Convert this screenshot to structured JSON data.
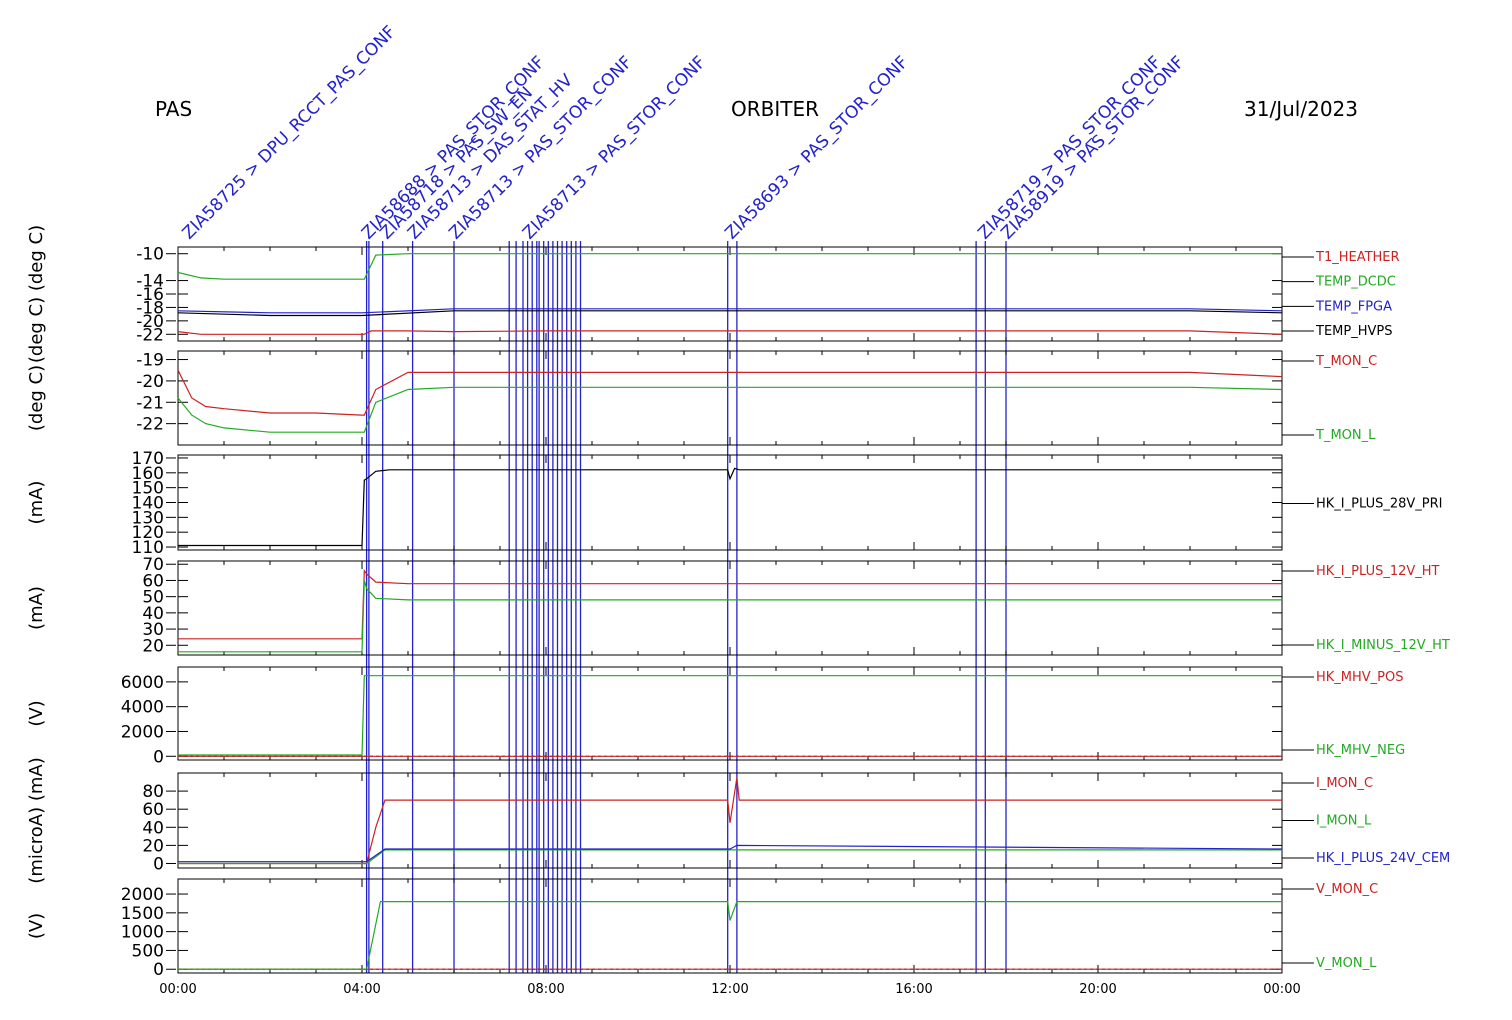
{
  "header": {
    "instrument": "PAS",
    "mission": "ORBITER",
    "date": "31/Jul/2023"
  },
  "x_axis": {
    "range_hours": [
      0,
      24
    ],
    "ticks": [
      {
        "h": 0,
        "label": "00:00"
      },
      {
        "h": 4,
        "label": "04:00"
      },
      {
        "h": 8,
        "label": "08:00"
      },
      {
        "h": 12,
        "label": "12:00"
      },
      {
        "h": 16,
        "label": "16:00"
      },
      {
        "h": 20,
        "label": "20:00"
      },
      {
        "h": 24,
        "label": "00:00"
      }
    ]
  },
  "event_markers": {
    "color": "#2222cc",
    "times_h": [
      4.1,
      4.15,
      4.45,
      5.1,
      6.0,
      7.2,
      7.35,
      7.5,
      7.6,
      7.7,
      7.8,
      7.85,
      7.95,
      8.05,
      8.15,
      8.25,
      8.35,
      8.45,
      8.55,
      8.65,
      8.75,
      11.95,
      12.15,
      17.35,
      17.55,
      18.0
    ],
    "labels": [
      {
        "h": 0.2,
        "text": "ZIA58725 > DPU_RCCT_PAS_CONF"
      },
      {
        "h": 4.1,
        "text": "ZIA58688 > PAS_STOR_CONF"
      },
      {
        "h": 4.5,
        "text": "ZIA58718 > PAS_SW_EN"
      },
      {
        "h": 5.1,
        "text": "ZIA58713 > DAS_STAT_HV"
      },
      {
        "h": 6.0,
        "text": "ZIA58713 > PAS_STOR_CONF"
      },
      {
        "h": 7.6,
        "text": "ZIA58713 > PAS_STOR_CONF"
      },
      {
        "h": 12.0,
        "text": "ZIA58693 > PAS_STOR_CONF"
      },
      {
        "h": 17.5,
        "text": "ZIA58719 > PAS_STOR_CONF"
      },
      {
        "h": 18.0,
        "text": "ZIA58919 > PAS_STOR_CONF"
      }
    ]
  },
  "chart_data": [
    {
      "type": "line",
      "ylabel": "(deg C) (deg C)",
      "ylim": [
        -23,
        -9
      ],
      "ticks": [
        -10,
        -14,
        -16,
        -18,
        -20,
        -22
      ],
      "tick_labels": [
        "-10",
        "-14",
        "-16",
        "-18",
        "-20",
        "-22"
      ],
      "series": [
        {
          "name": "T1_HEATHER",
          "color": "#cc2222",
          "x": [
            0,
            0.5,
            1,
            2,
            3,
            4,
            4.05,
            4.2,
            5,
            6,
            8,
            10,
            12,
            14,
            16,
            18,
            20,
            22,
            24
          ],
          "y": [
            -21.6,
            -22,
            -22,
            -22,
            -22,
            -22,
            -22,
            -21.5,
            -21.5,
            -21.6,
            -21.5,
            -21.5,
            -21.5,
            -21.5,
            -21.5,
            -21.5,
            -21.5,
            -21.5,
            -22
          ]
        },
        {
          "name": "TEMP_DCDC",
          "color": "#22aa22",
          "x": [
            0,
            0.5,
            1,
            2,
            3,
            4,
            4.05,
            4.3,
            5,
            6,
            8,
            10,
            12,
            14,
            16,
            18,
            20,
            22,
            24
          ],
          "y": [
            -12.8,
            -13.6,
            -13.8,
            -13.8,
            -13.8,
            -13.8,
            -13.8,
            -10.2,
            -10.0,
            -10.0,
            -10.0,
            -10.0,
            -10.0,
            -10.0,
            -10.0,
            -10.0,
            -10.0,
            -10.0,
            -10.0
          ]
        },
        {
          "name": "TEMP_FPGA",
          "color": "#2222cc",
          "x": [
            0,
            2,
            4,
            6,
            8,
            10,
            12,
            14,
            16,
            18,
            20,
            22,
            24
          ],
          "y": [
            -18.5,
            -18.8,
            -18.8,
            -18.2,
            -18.2,
            -18.2,
            -18.2,
            -18.2,
            -18.2,
            -18.2,
            -18.2,
            -18.2,
            -18.5
          ]
        },
        {
          "name": "TEMP_HVPS",
          "color": "#000000",
          "x": [
            0,
            2,
            4,
            6,
            8,
            10,
            12,
            14,
            16,
            18,
            20,
            22,
            24
          ],
          "y": [
            -18.8,
            -19.2,
            -19.2,
            -18.5,
            -18.5,
            -18.5,
            -18.5,
            -18.5,
            -18.5,
            -18.5,
            -18.5,
            -18.5,
            -18.8
          ]
        }
      ]
    },
    {
      "type": "line",
      "ylabel": "(deg C)",
      "ylim": [
        -23,
        -18.6
      ],
      "ticks": [
        -19,
        -20,
        -21,
        -22
      ],
      "tick_labels": [
        "-19",
        "-20",
        "-21",
        "-22"
      ],
      "series": [
        {
          "name": "T_MON_C",
          "color": "#cc2222",
          "x": [
            0,
            0.3,
            0.6,
            1,
            2,
            3,
            4,
            4.05,
            4.3,
            5,
            6,
            8,
            10,
            12,
            14,
            16,
            18,
            20,
            22,
            24
          ],
          "y": [
            -19.5,
            -20.8,
            -21.2,
            -21.3,
            -21.5,
            -21.5,
            -21.6,
            -21.6,
            -20.4,
            -19.6,
            -19.6,
            -19.6,
            -19.6,
            -19.6,
            -19.6,
            -19.6,
            -19.6,
            -19.6,
            -19.6,
            -19.8
          ]
        },
        {
          "name": "T_MON_L",
          "color": "#22aa22",
          "x": [
            0,
            0.3,
            0.6,
            1,
            2,
            3,
            4,
            4.05,
            4.3,
            5,
            6,
            8,
            10,
            12,
            14,
            16,
            18,
            20,
            22,
            24
          ],
          "y": [
            -20.8,
            -21.6,
            -22.0,
            -22.2,
            -22.4,
            -22.4,
            -22.4,
            -22.4,
            -21.0,
            -20.4,
            -20.3,
            -20.3,
            -20.3,
            -20.3,
            -20.3,
            -20.3,
            -20.3,
            -20.3,
            -20.3,
            -20.4
          ]
        }
      ]
    },
    {
      "type": "line",
      "ylabel": "(mA)",
      "ylim": [
        108,
        172
      ],
      "ticks": [
        170,
        160,
        150,
        140,
        130,
        120,
        110
      ],
      "tick_labels": [
        "170",
        "160",
        "150",
        "140",
        "130",
        "120",
        "110"
      ],
      "series": [
        {
          "name": "HK_I_PLUS_28V_PRI",
          "color": "#000000",
          "x": [
            0,
            4,
            4.05,
            4.1,
            4.3,
            4.6,
            5,
            11.95,
            12.0,
            12.1,
            12.2,
            24
          ],
          "y": [
            111,
            111,
            155,
            156,
            161,
            162,
            162,
            162,
            156,
            163,
            162,
            162
          ]
        }
      ]
    },
    {
      "type": "line",
      "ylabel": "(mA)",
      "ylim": [
        14,
        72
      ],
      "ticks": [
        70,
        60,
        50,
        40,
        30,
        20
      ],
      "tick_labels": [
        "70",
        "60",
        "50",
        "40",
        "30",
        "20"
      ],
      "series": [
        {
          "name": "HK_I_PLUS_12V_HT",
          "color": "#cc2222",
          "x": [
            0,
            4,
            4.05,
            4.1,
            4.3,
            5,
            24
          ],
          "y": [
            24,
            24,
            66,
            64,
            59,
            58,
            58
          ]
        },
        {
          "name": "HK_I_MINUS_12V_HT",
          "color": "#22aa22",
          "x": [
            0,
            4,
            4.05,
            4.1,
            4.3,
            5,
            24
          ],
          "y": [
            16,
            16,
            60,
            55,
            49,
            48,
            48
          ]
        }
      ]
    },
    {
      "type": "line",
      "ylabel": "(V)",
      "ylim": [
        -300,
        7200
      ],
      "ticks": [
        6000,
        4000,
        2000,
        0
      ],
      "tick_labels": [
        "6000",
        "4000",
        "2000",
        "0"
      ],
      "series": [
        {
          "name": "HK_MHV_POS",
          "color": "#cc2222",
          "x": [
            0,
            24
          ],
          "y": [
            0,
            0
          ]
        },
        {
          "name": "HK_MHV_NEG",
          "color": "#22aa22",
          "x": [
            0,
            4,
            4.05,
            24
          ],
          "y": [
            100,
            100,
            6500,
            6500
          ]
        }
      ]
    },
    {
      "type": "line",
      "ylabel": "(microA) (mA)",
      "ylim": [
        -5,
        100
      ],
      "ticks": [
        80,
        60,
        40,
        20,
        0
      ],
      "tick_labels": [
        "80",
        "60",
        "40",
        "20",
        "0"
      ],
      "series": [
        {
          "name": "I_MON_C",
          "color": "#cc2222",
          "x": [
            0,
            4,
            4.1,
            4.3,
            4.5,
            11.95,
            12.0,
            12.15,
            12.2,
            24
          ],
          "y": [
            0,
            0,
            0,
            40,
            70,
            70,
            45,
            95,
            70,
            70
          ]
        },
        {
          "name": "I_MON_L",
          "color": "#22aa22",
          "x": [
            0,
            4,
            4.1,
            4.5,
            24
          ],
          "y": [
            0,
            0,
            0,
            15,
            15
          ]
        },
        {
          "name": "HK_I_PLUS_24V_CEM",
          "color": "#2222cc",
          "x": [
            0,
            4,
            4.1,
            4.5,
            11.95,
            12.0,
            12.15,
            24
          ],
          "y": [
            2,
            2,
            2,
            16,
            16,
            16,
            20,
            16
          ]
        }
      ]
    },
    {
      "type": "line",
      "ylabel": "(V)",
      "ylim": [
        -100,
        2400
      ],
      "ticks": [
        2000,
        1500,
        1000,
        500,
        0
      ],
      "tick_labels": [
        "2000",
        "1500",
        "1000",
        "500",
        "0"
      ],
      "series": [
        {
          "name": "V_MON_C",
          "color": "#cc2222",
          "x": [
            0,
            24
          ],
          "y": [
            0,
            0
          ]
        },
        {
          "name": "V_MON_L",
          "color": "#22aa22",
          "x": [
            0,
            4,
            4.1,
            4.4,
            11.95,
            12.0,
            12.15,
            24
          ],
          "y": [
            0,
            0,
            0,
            1800,
            1800,
            1300,
            1800,
            1800
          ]
        }
      ]
    }
  ]
}
